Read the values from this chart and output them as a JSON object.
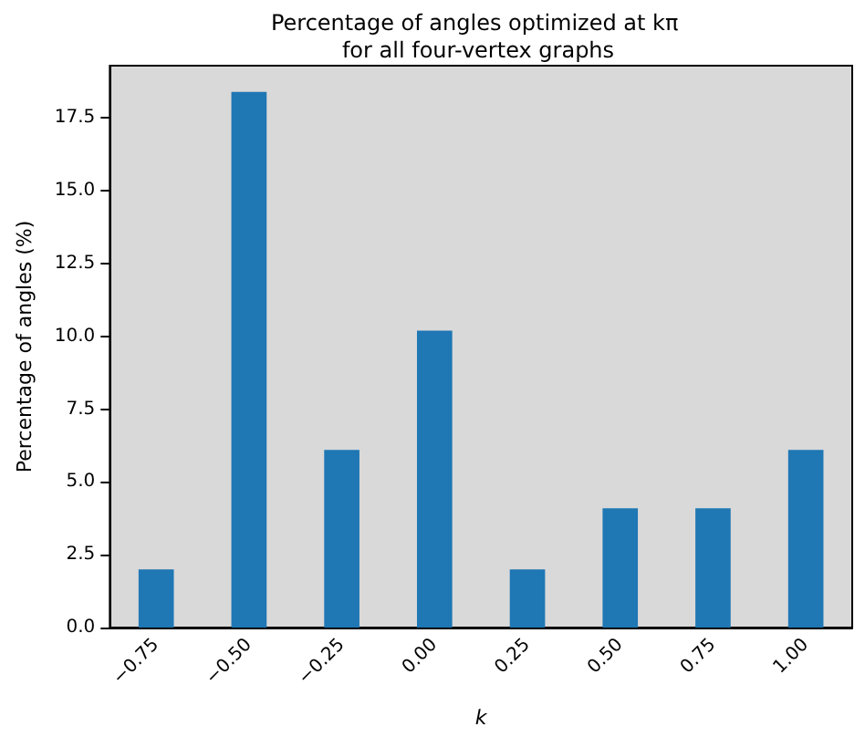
{
  "chart_data": {
    "type": "bar",
    "title": "Percentage of angles optimized at kπ for all four-vertex graphs",
    "xlabel": "k",
    "ylabel": "Percentage of angles (%)",
    "categories": [
      "−0.75",
      "−0.50",
      "−0.25",
      "0.00",
      "0.25",
      "0.50",
      "0.75",
      "1.00"
    ],
    "values": [
      2.0,
      18.4,
      6.1,
      10.2,
      2.0,
      4.1,
      4.1,
      6.1
    ],
    "color": "#1f77b4",
    "ylim": [
      0,
      19.3
    ],
    "yticks": [
      {
        "value": 0,
        "label": "0.0"
      },
      {
        "value": 2.5,
        "label": "2.5"
      },
      {
        "value": 5,
        "label": "5.0"
      },
      {
        "value": 7.5,
        "label": "7.5"
      },
      {
        "value": 10,
        "label": "10.0"
      },
      {
        "value": 12.5,
        "label": "12.5"
      },
      {
        "value": 15,
        "label": "15.0"
      },
      {
        "value": 17.5,
        "label": "17.5"
      }
    ],
    "grid": false
  }
}
